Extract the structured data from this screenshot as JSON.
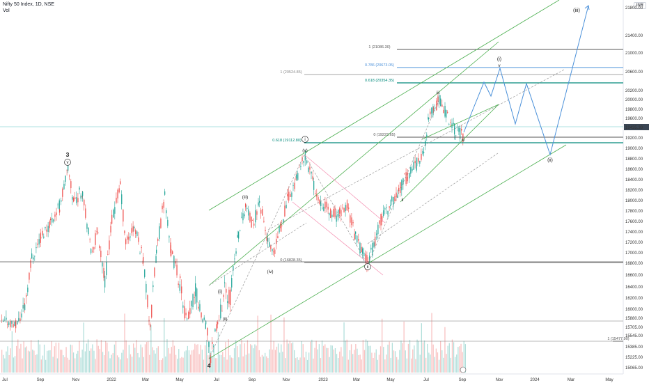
{
  "header": {
    "symbol_line": "Nifty 50 Index, 1D, NSE",
    "vol_label": "Vol",
    "currency": "INR",
    "last_price": "19435.30"
  },
  "chart_data": {
    "type": "candlestick",
    "title": "Nifty 50 Index, 1D, NSE",
    "x_axis_labels": [
      "Jul",
      "Sep",
      "Nov",
      "2022",
      "Mar",
      "May",
      "Jul",
      "Sep",
      "Nov",
      "2023",
      "Mar",
      "May",
      "Jul",
      "Sep",
      "Nov",
      "2024",
      "Mar",
      "May"
    ],
    "y_axis_labels": [
      "21800.00",
      "21400.00",
      "21000.00",
      "20600.00",
      "20200.00",
      "20000.00",
      "19800.00",
      "19600.00",
      "19200.00",
      "19000.00",
      "18800.00",
      "18600.00",
      "18400.00",
      "18200.00",
      "18000.00",
      "17800.00",
      "17600.00",
      "17400.00",
      "17200.00",
      "17000.00",
      "16800.00",
      "16600.00",
      "16400.00",
      "16200.00",
      "16000.00",
      "15880.00",
      "15705.00",
      "15545.00",
      "15385.00",
      "15225.00",
      "15065.00"
    ],
    "last_price": 19435.3,
    "fib_levels": [
      {
        "label": "1 (21086.30)",
        "value": 21086.3,
        "color": "#555555"
      },
      {
        "label": "0.786 (20673.05)",
        "value": 20673.05,
        "color": "#4a90d9"
      },
      {
        "label": "1 (20524.85)",
        "value": 20524.85,
        "color": "#888888"
      },
      {
        "label": "0.618 (20354.35)",
        "value": 20354.35,
        "color": "#00897b"
      },
      {
        "label": "0 (19223.65)",
        "value": 19223.65,
        "color": "#555555"
      },
      {
        "label": "0.618 (19112.80)",
        "value": 19112.8,
        "color": "#00897b"
      },
      {
        "label": "0 (16828.35)",
        "value": 16828.35,
        "color": "#555555"
      },
      {
        "label": "1 (15477.90)",
        "value": 15477.9,
        "color": "#555555"
      }
    ],
    "wave_labels": [
      "3",
      "v",
      "4",
      "(i)",
      "(ii)",
      "(iii)",
      "(iv)",
      "(v)",
      "i",
      "ii",
      "ii",
      "iii",
      "iv",
      "(i)",
      "v",
      "(ii)",
      "(iii)"
    ],
    "key_prices": [
      {
        "date": "Oct 2021",
        "price": 18600,
        "label": "3"
      },
      {
        "date": "Jun 2022",
        "price": 15200,
        "label": "4"
      },
      {
        "date": "Dec 2022",
        "price": 18880,
        "label": "i"
      },
      {
        "date": "Mar 2023",
        "price": 16830,
        "label": "ii"
      },
      {
        "date": "Jul 2023",
        "price": 20000,
        "label": "iii"
      },
      {
        "date": "Aug 2023",
        "price": 19230,
        "label": "iv"
      },
      {
        "date": "Oct 2023",
        "price": 20680,
        "label": "v / (i)"
      },
      {
        "date": "Jan 2024",
        "price": 18880,
        "label": "(ii)"
      },
      {
        "date": "Mar 2024",
        "price": 22000,
        "label": "(iii)"
      }
    ],
    "colors": {
      "up": "#26a69a",
      "down": "#ef5350",
      "channel": "#4caf50",
      "projection": "#4a90d9"
    }
  }
}
